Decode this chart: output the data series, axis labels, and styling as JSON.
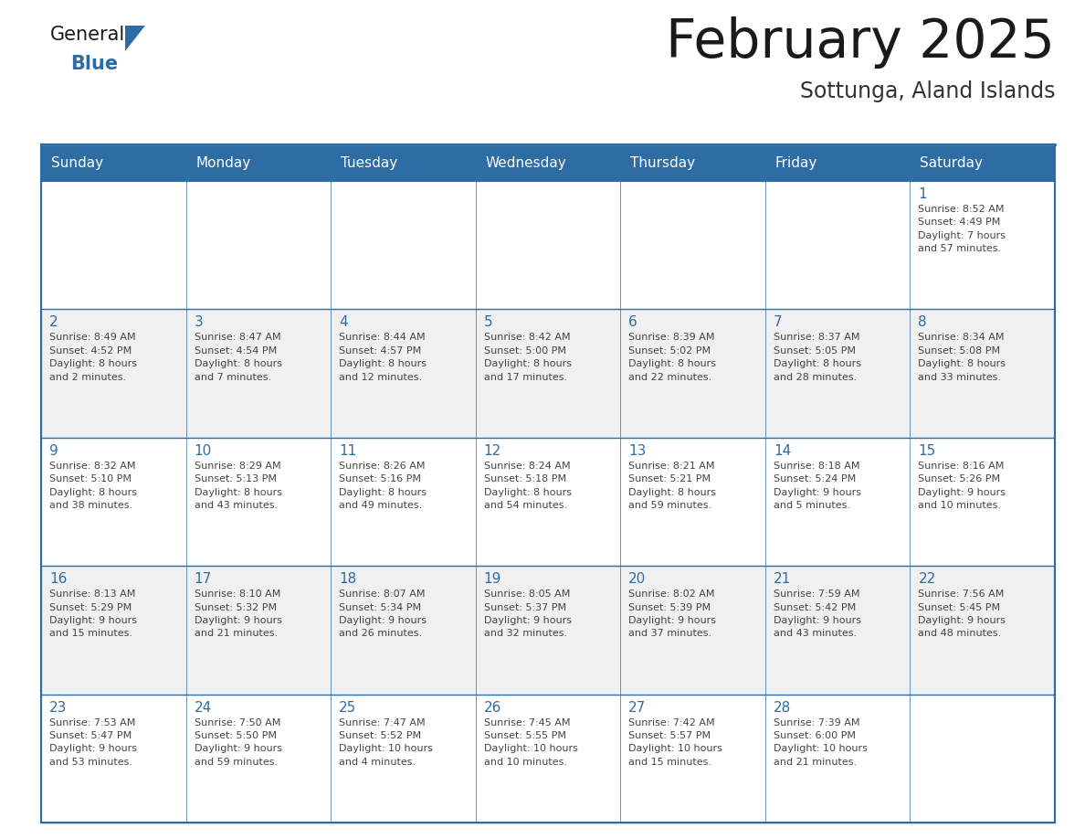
{
  "title": "February 2025",
  "subtitle": "Sottunga, Aland Islands",
  "header_bg_color": "#2E6DA4",
  "header_text_color": "#FFFFFF",
  "border_color": "#2E6DA4",
  "title_color": "#1a1a1a",
  "subtitle_color": "#333333",
  "day_number_color": "#2E6DA4",
  "cell_text_color": "#444444",
  "logo_general_color": "#1a1a1a",
  "logo_blue_color": "#2E6DA4",
  "logo_triangle_color": "#2E6DA4",
  "days_of_week": [
    "Sunday",
    "Monday",
    "Tuesday",
    "Wednesday",
    "Thursday",
    "Friday",
    "Saturday"
  ],
  "row_colors": [
    "#FFFFFF",
    "#F0F0F0",
    "#FFFFFF",
    "#F0F0F0",
    "#FFFFFF"
  ],
  "weeks": [
    [
      {
        "day": 0,
        "info": ""
      },
      {
        "day": 0,
        "info": ""
      },
      {
        "day": 0,
        "info": ""
      },
      {
        "day": 0,
        "info": ""
      },
      {
        "day": 0,
        "info": ""
      },
      {
        "day": 0,
        "info": ""
      },
      {
        "day": 1,
        "info": "Sunrise: 8:52 AM\nSunset: 4:49 PM\nDaylight: 7 hours\nand 57 minutes."
      }
    ],
    [
      {
        "day": 2,
        "info": "Sunrise: 8:49 AM\nSunset: 4:52 PM\nDaylight: 8 hours\nand 2 minutes."
      },
      {
        "day": 3,
        "info": "Sunrise: 8:47 AM\nSunset: 4:54 PM\nDaylight: 8 hours\nand 7 minutes."
      },
      {
        "day": 4,
        "info": "Sunrise: 8:44 AM\nSunset: 4:57 PM\nDaylight: 8 hours\nand 12 minutes."
      },
      {
        "day": 5,
        "info": "Sunrise: 8:42 AM\nSunset: 5:00 PM\nDaylight: 8 hours\nand 17 minutes."
      },
      {
        "day": 6,
        "info": "Sunrise: 8:39 AM\nSunset: 5:02 PM\nDaylight: 8 hours\nand 22 minutes."
      },
      {
        "day": 7,
        "info": "Sunrise: 8:37 AM\nSunset: 5:05 PM\nDaylight: 8 hours\nand 28 minutes."
      },
      {
        "day": 8,
        "info": "Sunrise: 8:34 AM\nSunset: 5:08 PM\nDaylight: 8 hours\nand 33 minutes."
      }
    ],
    [
      {
        "day": 9,
        "info": "Sunrise: 8:32 AM\nSunset: 5:10 PM\nDaylight: 8 hours\nand 38 minutes."
      },
      {
        "day": 10,
        "info": "Sunrise: 8:29 AM\nSunset: 5:13 PM\nDaylight: 8 hours\nand 43 minutes."
      },
      {
        "day": 11,
        "info": "Sunrise: 8:26 AM\nSunset: 5:16 PM\nDaylight: 8 hours\nand 49 minutes."
      },
      {
        "day": 12,
        "info": "Sunrise: 8:24 AM\nSunset: 5:18 PM\nDaylight: 8 hours\nand 54 minutes."
      },
      {
        "day": 13,
        "info": "Sunrise: 8:21 AM\nSunset: 5:21 PM\nDaylight: 8 hours\nand 59 minutes."
      },
      {
        "day": 14,
        "info": "Sunrise: 8:18 AM\nSunset: 5:24 PM\nDaylight: 9 hours\nand 5 minutes."
      },
      {
        "day": 15,
        "info": "Sunrise: 8:16 AM\nSunset: 5:26 PM\nDaylight: 9 hours\nand 10 minutes."
      }
    ],
    [
      {
        "day": 16,
        "info": "Sunrise: 8:13 AM\nSunset: 5:29 PM\nDaylight: 9 hours\nand 15 minutes."
      },
      {
        "day": 17,
        "info": "Sunrise: 8:10 AM\nSunset: 5:32 PM\nDaylight: 9 hours\nand 21 minutes."
      },
      {
        "day": 18,
        "info": "Sunrise: 8:07 AM\nSunset: 5:34 PM\nDaylight: 9 hours\nand 26 minutes."
      },
      {
        "day": 19,
        "info": "Sunrise: 8:05 AM\nSunset: 5:37 PM\nDaylight: 9 hours\nand 32 minutes."
      },
      {
        "day": 20,
        "info": "Sunrise: 8:02 AM\nSunset: 5:39 PM\nDaylight: 9 hours\nand 37 minutes."
      },
      {
        "day": 21,
        "info": "Sunrise: 7:59 AM\nSunset: 5:42 PM\nDaylight: 9 hours\nand 43 minutes."
      },
      {
        "day": 22,
        "info": "Sunrise: 7:56 AM\nSunset: 5:45 PM\nDaylight: 9 hours\nand 48 minutes."
      }
    ],
    [
      {
        "day": 23,
        "info": "Sunrise: 7:53 AM\nSunset: 5:47 PM\nDaylight: 9 hours\nand 53 minutes."
      },
      {
        "day": 24,
        "info": "Sunrise: 7:50 AM\nSunset: 5:50 PM\nDaylight: 9 hours\nand 59 minutes."
      },
      {
        "day": 25,
        "info": "Sunrise: 7:47 AM\nSunset: 5:52 PM\nDaylight: 10 hours\nand 4 minutes."
      },
      {
        "day": 26,
        "info": "Sunrise: 7:45 AM\nSunset: 5:55 PM\nDaylight: 10 hours\nand 10 minutes."
      },
      {
        "day": 27,
        "info": "Sunrise: 7:42 AM\nSunset: 5:57 PM\nDaylight: 10 hours\nand 15 minutes."
      },
      {
        "day": 28,
        "info": "Sunrise: 7:39 AM\nSunset: 6:00 PM\nDaylight: 10 hours\nand 21 minutes."
      },
      {
        "day": 0,
        "info": ""
      }
    ]
  ]
}
